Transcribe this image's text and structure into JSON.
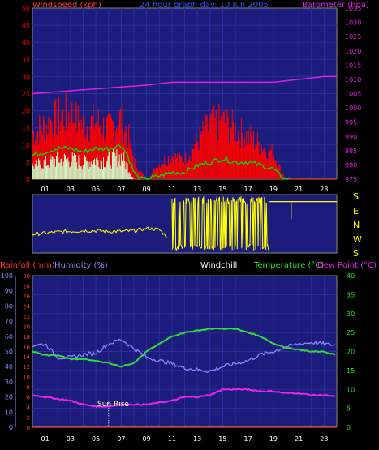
{
  "colors": {
    "background": "#000000",
    "plot_bg": "#1c1c7c",
    "grid": "#2e2e9e",
    "wind_red": "#ff0000",
    "wind_green": "#00dd00",
    "wind_gust_white": "#ccffcc",
    "barometer": "#dd22dd",
    "direction_yellow": "#ffff00",
    "rainfall": "#ff3333",
    "humidity": "#8888ff",
    "windchill": "#ffffff",
    "temperature": "#33dd33",
    "dew_point": "#ee22ee",
    "sunrise": "#ffffcc"
  },
  "panel1": {
    "left_title": "Windspeed (kph)",
    "center_title": "24 hour graph day: 10 Jun 2005",
    "right_title": "Barometer (hpa)"
  },
  "panel2": {
    "compass": [
      "S",
      "E",
      "N",
      "W",
      "S"
    ]
  },
  "panel3": {
    "labels": [
      "Rainfall (mm)",
      "Humidity (%)",
      "Windchill",
      "Temperature (°C)",
      "Dew Point (°C)"
    ],
    "sunrise_label": "Sun Rise"
  },
  "chart_data": [
    {
      "type": "line",
      "name": "wind_and_pressure",
      "x_ticks": [
        "01",
        "03",
        "05",
        "07",
        "09",
        "11",
        "13",
        "15",
        "17",
        "19",
        "21",
        "23"
      ],
      "x_range_hours": [
        0,
        24
      ],
      "y_left": {
        "label": "Windspeed (kph)",
        "ylim": [
          0,
          50
        ],
        "ticks": [
          "0",
          "5",
          "10",
          "15",
          "20",
          "25",
          "30",
          "35",
          "40",
          "45",
          "50"
        ]
      },
      "y_right": {
        "label": "Barometer (hpa)",
        "ylim": [
          975,
          1035
        ],
        "ticks": [
          "975",
          "980",
          "985",
          "990",
          "995",
          "1000",
          "1005",
          "1010",
          "1015",
          "1020",
          "1025",
          "1030",
          "1035"
        ]
      },
      "series": [
        {
          "axis": "left",
          "style": "spiky",
          "x": [
            0,
            1,
            2,
            3,
            4,
            5,
            6,
            7,
            7.5,
            8,
            8.5,
            9,
            10,
            11,
            12,
            13,
            14,
            15,
            16,
            17,
            18,
            19,
            19.5,
            20,
            21,
            24
          ],
          "y": [
            12,
            14,
            16,
            17,
            14,
            15,
            13,
            16,
            12,
            5,
            2,
            0,
            4,
            6,
            5,
            10,
            14,
            15,
            13,
            11,
            9,
            7,
            3,
            0,
            0,
            0
          ]
        },
        {
          "axis": "left",
          "x": [
            0,
            1,
            2,
            3,
            4,
            5,
            6,
            7,
            7.5,
            8,
            8.5,
            9,
            10,
            11,
            12,
            13,
            14,
            15,
            16,
            17,
            18,
            19,
            19.5,
            20,
            21,
            24
          ],
          "y": [
            7,
            8,
            9,
            9,
            8,
            9,
            9,
            10,
            7,
            2,
            0,
            0,
            1,
            2,
            2,
            4,
            5,
            6,
            5,
            5,
            4,
            3,
            1,
            0,
            0,
            0
          ]
        },
        {
          "axis": "left",
          "x": [
            0,
            1,
            2,
            3,
            4,
            5,
            6,
            7,
            7.5,
            8,
            8.5,
            9,
            10,
            11,
            12,
            13,
            14,
            15,
            16,
            17,
            18,
            19,
            19.5,
            20,
            21,
            24
          ],
          "y": [
            4,
            5,
            6,
            6,
            5,
            6,
            6,
            7,
            4,
            0,
            0,
            0,
            0,
            0,
            0,
            0,
            0,
            0,
            0,
            0,
            0,
            0,
            0,
            0,
            0,
            0
          ]
        },
        {
          "axis": "right",
          "x": [
            0,
            3,
            6,
            9,
            11,
            13,
            15,
            17,
            19,
            21,
            23,
            24
          ],
          "y": [
            1005,
            1006,
            1007,
            1008,
            1009,
            1009,
            1009,
            1009,
            1009,
            1010,
            1011,
            1011
          ]
        }
      ]
    },
    {
      "type": "line",
      "name": "wind_direction",
      "x_range_hours": [
        0,
        24
      ],
      "y_ticks": [
        "S",
        "E",
        "N",
        "W",
        "S"
      ],
      "series": [
        {
          "x": [
            0,
            1,
            2,
            3,
            4,
            5,
            6,
            7,
            8,
            9,
            10,
            11
          ],
          "y": [
            0.32,
            0.34,
            0.36,
            0.37,
            0.38,
            0.38,
            0.37,
            0.37,
            0.38,
            0.42,
            0.4,
            0.2
          ]
        }
      ]
    },
    {
      "type": "line",
      "name": "temperature_humidity",
      "x_ticks": [
        "01",
        "03",
        "05",
        "07",
        "09",
        "11",
        "13",
        "15",
        "17",
        "19",
        "21",
        "23"
      ],
      "x_range_hours": [
        0,
        24
      ],
      "y_rain": {
        "label": "Rainfall (mm)",
        "ylim": [
          0,
          30
        ],
        "ticks": [
          "0",
          "2",
          "4",
          "6",
          "8",
          "10",
          "12",
          "14",
          "16",
          "18",
          "20",
          "22",
          "24",
          "26",
          "28",
          "30"
        ]
      },
      "y_humidity": {
        "label": "Humidity (%)",
        "ylim": [
          0,
          100
        ],
        "ticks": [
          "0",
          "10",
          "20",
          "30",
          "40",
          "50",
          "60",
          "70",
          "80",
          "90",
          "100"
        ]
      },
      "y_temp": {
        "label": "Temperature (°C)",
        "ylim": [
          0,
          40
        ],
        "ticks": [
          "0",
          "5",
          "10",
          "15",
          "20",
          "25",
          "30",
          "35",
          "40"
        ]
      },
      "series": [
        {
          "axis": "temp",
          "x": [
            0,
            1,
            2,
            3,
            4,
            5,
            6,
            7,
            8,
            9,
            10,
            11,
            12,
            13,
            14,
            15,
            16,
            17,
            18,
            19,
            20,
            21,
            22,
            23,
            24
          ],
          "y": [
            20,
            19,
            19,
            18,
            18,
            17.5,
            17,
            16,
            17,
            20,
            22,
            24,
            25,
            25.5,
            26,
            26,
            26,
            25,
            24,
            22,
            21,
            20.5,
            20,
            20,
            19
          ]
        },
        {
          "axis": "humidity",
          "x": [
            0,
            1,
            2,
            3,
            4,
            5,
            6,
            7,
            8,
            9,
            10,
            11,
            12,
            13,
            14,
            15,
            16,
            17,
            18,
            19,
            20,
            21,
            22,
            23,
            24
          ],
          "y": [
            54,
            55,
            46,
            46,
            48,
            49,
            55,
            58,
            52,
            46,
            44,
            42,
            39,
            38,
            37,
            40,
            42,
            44,
            48,
            50,
            53,
            55,
            56,
            55,
            54
          ]
        },
        {
          "axis": "temp",
          "x": [
            0,
            1,
            2,
            3,
            4,
            5,
            6,
            7,
            8,
            9,
            10,
            11,
            12,
            13,
            14,
            15,
            16,
            17,
            18,
            19,
            20,
            21,
            22,
            23,
            24
          ],
          "y": [
            8.5,
            8,
            7.5,
            7,
            6,
            5.5,
            5.5,
            6,
            6,
            6,
            6.5,
            7,
            8,
            8,
            8.5,
            10,
            10,
            10,
            9.5,
            9.5,
            9,
            9,
            8.5,
            8.5,
            8
          ]
        },
        {
          "axis": "rain",
          "x": [
            0,
            24
          ],
          "y": [
            0,
            0
          ]
        }
      ],
      "sunrise_hour": 6
    }
  ]
}
